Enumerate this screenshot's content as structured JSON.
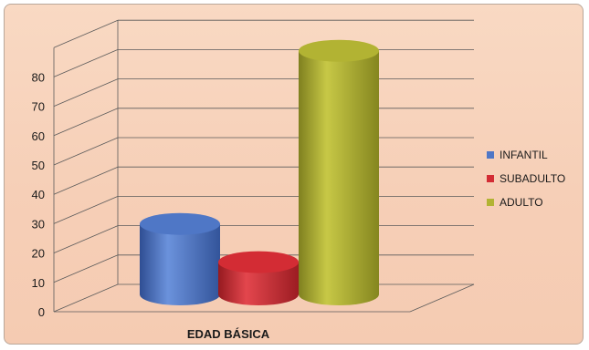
{
  "chart_data": {
    "type": "bar",
    "subtype": "3d-cylinder",
    "categories": [
      "EDAD BÁSICA"
    ],
    "series": [
      {
        "name": "INFANTIL",
        "values": [
          24
        ],
        "color": "#4f77c6"
      },
      {
        "name": "SUBADULTO",
        "values": [
          11
        ],
        "color": "#d32c34"
      },
      {
        "name": "ADULTO",
        "values": [
          83
        ],
        "color": "#b2b333"
      }
    ],
    "y_ticks": [
      "0",
      "10",
      "20",
      "30",
      "40",
      "50",
      "60",
      "70",
      "80"
    ],
    "ylim": [
      0,
      90
    ],
    "grid": true,
    "legend_position": "right"
  }
}
